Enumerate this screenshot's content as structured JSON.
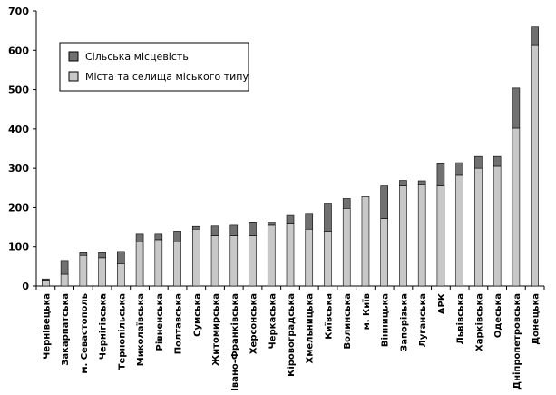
{
  "chart_data": {
    "type": "bar",
    "stacked": true,
    "categories": [
      "Чернівецька",
      "Закарпатська",
      "м. Севастополь",
      "Чернігівська",
      "Тернопільська",
      "Миколаївська",
      "Рівненська",
      "Полтавська",
      "Сумська",
      "Житомирська",
      "Івано-Франківська",
      "Херсонська",
      "Черкаська",
      "Кіровоградська",
      "Хмельницька",
      "Київська",
      "Волинська",
      "м. Київ",
      "Вінницька",
      "Запорізька",
      "Луганська",
      "АРК",
      "Львівська",
      "Харківська",
      "Одеська",
      "Дніпропетровська",
      "Донецька"
    ],
    "series": [
      {
        "name": "Міста та селища міського типу",
        "color": "#c8c8c8",
        "values": [
          15,
          30,
          78,
          72,
          57,
          112,
          118,
          112,
          145,
          128,
          128,
          128,
          155,
          158,
          145,
          140,
          198,
          228,
          172,
          255,
          258,
          255,
          282,
          300,
          305,
          402,
          612
        ]
      },
      {
        "name": "Сільська місцевість",
        "color": "#707070",
        "values": [
          3,
          35,
          7,
          13,
          31,
          20,
          14,
          28,
          7,
          25,
          27,
          33,
          7,
          22,
          38,
          69,
          25,
          0,
          83,
          14,
          10,
          56,
          32,
          30,
          25,
          102,
          47
        ]
      }
    ],
    "legend_order": [
      "Сільська місцевість",
      "Міста та селища міського типу"
    ],
    "legend_position": "top-left",
    "ylim": [
      0,
      700
    ],
    "yticks": [
      "0",
      "100",
      "200",
      "300",
      "400",
      "500",
      "600",
      "700"
    ],
    "xlabel": "",
    "ylabel": "",
    "title": "",
    "grid": false
  }
}
